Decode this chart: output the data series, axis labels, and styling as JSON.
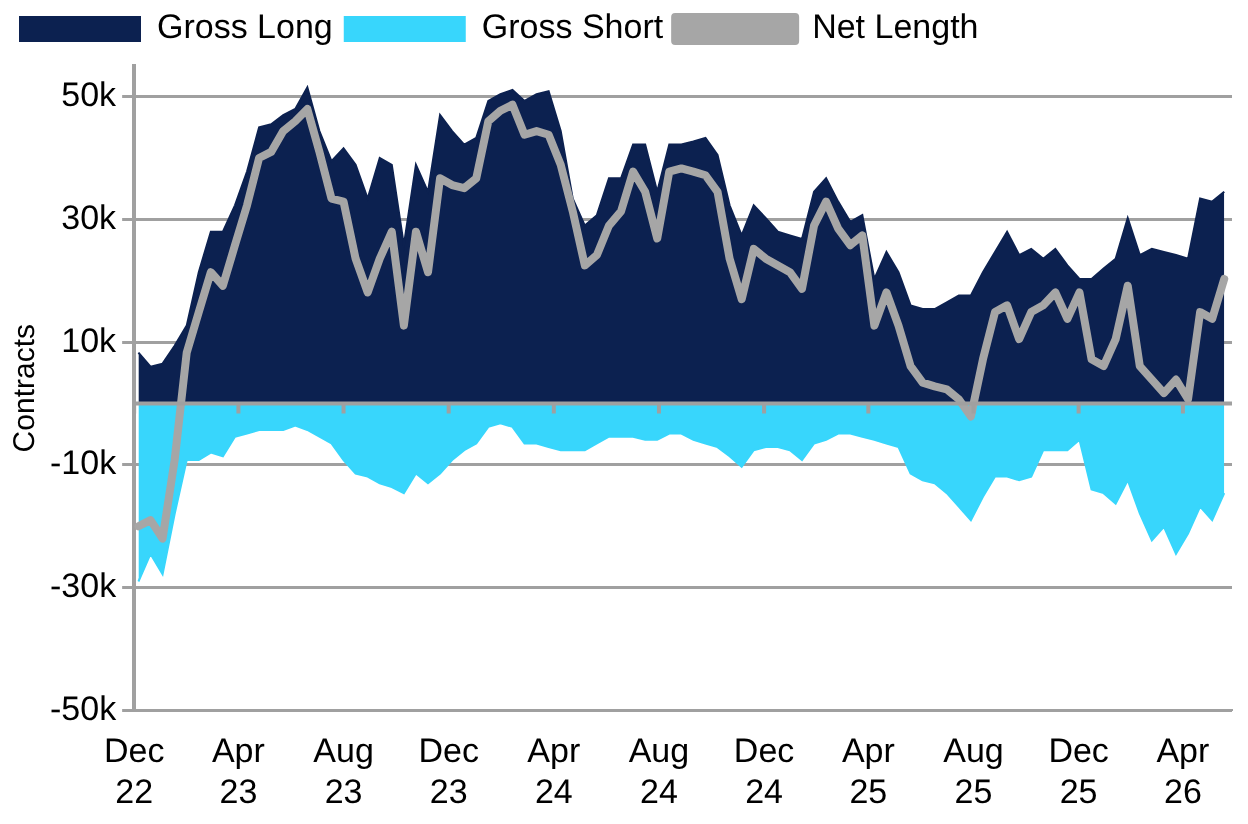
{
  "chart_data": {
    "type": "area",
    "ylabel": "Contracts",
    "legend": "top",
    "grid": "y",
    "x": [
      "2022-12-06",
      "2022-12-20",
      "2023-01-03",
      "2023-01-17",
      "2023-01-31",
      "2023-02-14",
      "2023-02-28",
      "2023-03-14",
      "2023-03-28",
      "2023-04-11",
      "2023-04-25",
      "2023-05-09",
      "2023-05-23",
      "2023-06-06",
      "2023-06-20",
      "2023-07-04",
      "2023-07-18",
      "2023-08-01",
      "2023-08-15",
      "2023-08-29",
      "2023-09-12",
      "2023-09-26",
      "2023-10-10",
      "2023-10-24",
      "2023-11-07",
      "2023-11-21",
      "2023-12-05",
      "2023-12-19",
      "2024-01-02",
      "2024-01-16",
      "2024-01-30",
      "2024-02-13",
      "2024-02-27",
      "2024-03-12",
      "2024-03-26",
      "2024-04-09",
      "2024-04-23",
      "2024-05-07",
      "2024-05-21",
      "2024-06-04",
      "2024-06-18",
      "2024-07-02",
      "2024-07-16",
      "2024-07-30",
      "2024-08-13",
      "2024-08-27",
      "2024-09-10",
      "2024-09-24",
      "2024-10-08",
      "2024-10-22",
      "2024-11-05",
      "2024-11-19",
      "2024-12-03",
      "2024-12-17",
      "2024-12-31",
      "2025-01-14",
      "2025-01-28",
      "2025-02-11",
      "2025-02-25",
      "2025-03-11",
      "2025-03-25",
      "2025-04-08",
      "2025-04-22",
      "2025-05-06",
      "2025-05-20",
      "2025-06-03",
      "2025-06-17",
      "2025-07-01",
      "2025-07-15",
      "2025-07-29",
      "2025-08-12",
      "2025-08-26",
      "2025-09-09",
      "2025-09-23",
      "2025-10-07",
      "2025-10-21",
      "2025-11-04",
      "2025-11-18",
      "2025-12-02",
      "2025-12-16",
      "2025-12-30",
      "2026-01-13",
      "2026-01-27",
      "2026-02-10",
      "2026-02-24",
      "2026-03-10",
      "2026-03-24",
      "2026-04-07",
      "2026-04-21",
      "2026-05-05",
      "2026-05-19"
    ],
    "xlim": [
      "2022-12-01",
      "2026-05-28"
    ],
    "xticks": [
      {
        "value": "2022-12-01",
        "label": "Dec 22"
      },
      {
        "value": "2023-04-01",
        "label": "Apr 23"
      },
      {
        "value": "2023-08-01",
        "label": "Aug 23"
      },
      {
        "value": "2023-12-01",
        "label": "Dec 23"
      },
      {
        "value": "2024-04-01",
        "label": "Apr 24"
      },
      {
        "value": "2024-08-01",
        "label": "Aug 24"
      },
      {
        "value": "2024-12-01",
        "label": "Dec 24"
      },
      {
        "value": "2025-04-01",
        "label": "Apr 25"
      },
      {
        "value": "2025-08-01",
        "label": "Aug 25"
      },
      {
        "value": "2025-12-01",
        "label": "Dec 25"
      },
      {
        "value": "2026-04-01",
        "label": "Apr 26"
      }
    ],
    "ylim": [
      -50000,
      55000
    ],
    "yticks": [
      {
        "value": -50000,
        "label": "-50k"
      },
      {
        "value": -30000,
        "label": "-30k"
      },
      {
        "value": -10000,
        "label": "-10k"
      },
      {
        "value": 10000,
        "label": "10k"
      },
      {
        "value": 30000,
        "label": "30k"
      },
      {
        "value": 50000,
        "label": "50k"
      }
    ],
    "series": [
      {
        "name": "Gross Long",
        "color": "#0c2150",
        "values": [
          8300,
          6000,
          6500,
          9400,
          12700,
          21400,
          28000,
          28000,
          32300,
          37800,
          45000,
          45500,
          47000,
          48000,
          51500,
          44400,
          39500,
          41600,
          38900,
          33400,
          40000,
          38900,
          25800,
          38900,
          34500,
          47000,
          44400,
          42200,
          43300,
          49300,
          50400,
          51100,
          49300,
          50400,
          50900,
          44400,
          33400,
          29000,
          30700,
          36700,
          36700,
          42200,
          42200,
          34500,
          42200,
          42200,
          42700,
          43300,
          40500,
          32300,
          27400,
          32300,
          30200,
          28000,
          27400,
          26800,
          34500,
          36700,
          32900,
          29600,
          30700,
          20300,
          24700,
          21400,
          16000,
          15400,
          15400,
          16500,
          17600,
          17600,
          21400,
          24700,
          28000,
          24200,
          25200,
          23600,
          25200,
          22500,
          20300,
          20300,
          22000,
          23600,
          30200,
          24200,
          25200,
          24700,
          24200,
          23600,
          33400,
          32900,
          34500
        ]
      },
      {
        "name": "Gross Short",
        "color": "#38d6fc",
        "values": [
          -29000,
          -24500,
          -27800,
          -18000,
          -9200,
          -9200,
          -8000,
          -8600,
          -5400,
          -4900,
          -4300,
          -4300,
          -4300,
          -3600,
          -4300,
          -5400,
          -6500,
          -9200,
          -11400,
          -11900,
          -13000,
          -13600,
          -14600,
          -11400,
          -13000,
          -11400,
          -9200,
          -7600,
          -6500,
          -3800,
          -3200,
          -3800,
          -6500,
          -6500,
          -7100,
          -7600,
          -7600,
          -7600,
          -6500,
          -5400,
          -5400,
          -5400,
          -5900,
          -5900,
          -4900,
          -4900,
          -5900,
          -6500,
          -7100,
          -8600,
          -10300,
          -7600,
          -7100,
          -7100,
          -7600,
          -9200,
          -6500,
          -5900,
          -4900,
          -4900,
          -5400,
          -5900,
          -6500,
          -7100,
          -11400,
          -12500,
          -13000,
          -14600,
          -16800,
          -19000,
          -15200,
          -11900,
          -11900,
          -12500,
          -11900,
          -7600,
          -7600,
          -7600,
          -5900,
          -14000,
          -14600,
          -16300,
          -12500,
          -17900,
          -22300,
          -20100,
          -24500,
          -21200,
          -16800,
          -19000,
          -14600
        ]
      },
      {
        "name": "Net Length",
        "type": "line",
        "color": "#a6a6a6",
        "values": [
          -20000,
          -19000,
          -22000,
          -9200,
          8300,
          14900,
          21400,
          19200,
          25800,
          32300,
          40000,
          41000,
          44400,
          46000,
          48000,
          41000,
          33400,
          32900,
          23600,
          18100,
          23600,
          28000,
          12700,
          28000,
          21400,
          36700,
          35600,
          35100,
          36700,
          46000,
          47700,
          48700,
          43800,
          44400,
          43800,
          38900,
          31300,
          22500,
          24200,
          29000,
          31300,
          37800,
          34500,
          26900,
          37800,
          38300,
          37800,
          37200,
          34500,
          23600,
          17000,
          25200,
          23600,
          22500,
          21400,
          18700,
          29000,
          32900,
          28500,
          25800,
          27400,
          12700,
          18100,
          12700,
          6100,
          3400,
          2800,
          2300,
          700,
          -2100,
          7200,
          14900,
          16000,
          10500,
          14900,
          16000,
          18100,
          13800,
          18100,
          7200,
          6100,
          10500,
          19200,
          6100,
          3900,
          1700,
          3900,
          700,
          14900,
          13800,
          20300
        ]
      }
    ]
  }
}
